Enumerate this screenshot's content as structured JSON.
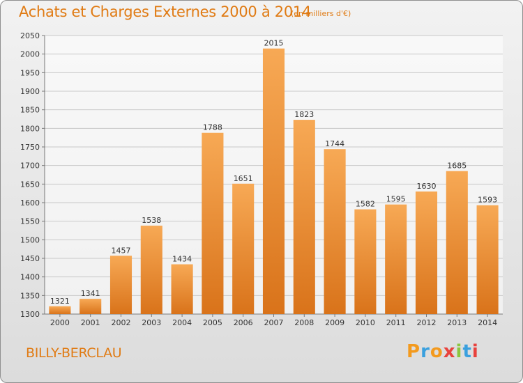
{
  "header": {
    "title": "Achats et Charges Externes 2000 à 2014",
    "unit": "(en milliers d'€)"
  },
  "footer": {
    "commune": "BILLY-BERCLAU",
    "logo": "Proxiti"
  },
  "colors": {
    "accent": "#e07b14",
    "bar_top": "#f7a955",
    "bar_bottom": "#d9731a"
  },
  "chart_data": {
    "type": "bar",
    "title": "Achats et Charges Externes 2000 à 2014",
    "subtitle": "(en milliers d'€)",
    "categories": [
      "2000",
      "2001",
      "2002",
      "2003",
      "2004",
      "2005",
      "2006",
      "2007",
      "2008",
      "2009",
      "2010",
      "2011",
      "2012",
      "2013",
      "2014"
    ],
    "values": [
      1321,
      1341,
      1457,
      1538,
      1434,
      1788,
      1651,
      2015,
      1823,
      1744,
      1582,
      1595,
      1630,
      1685,
      1593
    ],
    "ylim": [
      1300,
      2050
    ],
    "yticks": [
      1300,
      1350,
      1400,
      1450,
      1500,
      1550,
      1600,
      1650,
      1700,
      1750,
      1800,
      1850,
      1900,
      1950,
      2000,
      2050
    ],
    "grid": true,
    "xlabel": "",
    "ylabel": ""
  }
}
